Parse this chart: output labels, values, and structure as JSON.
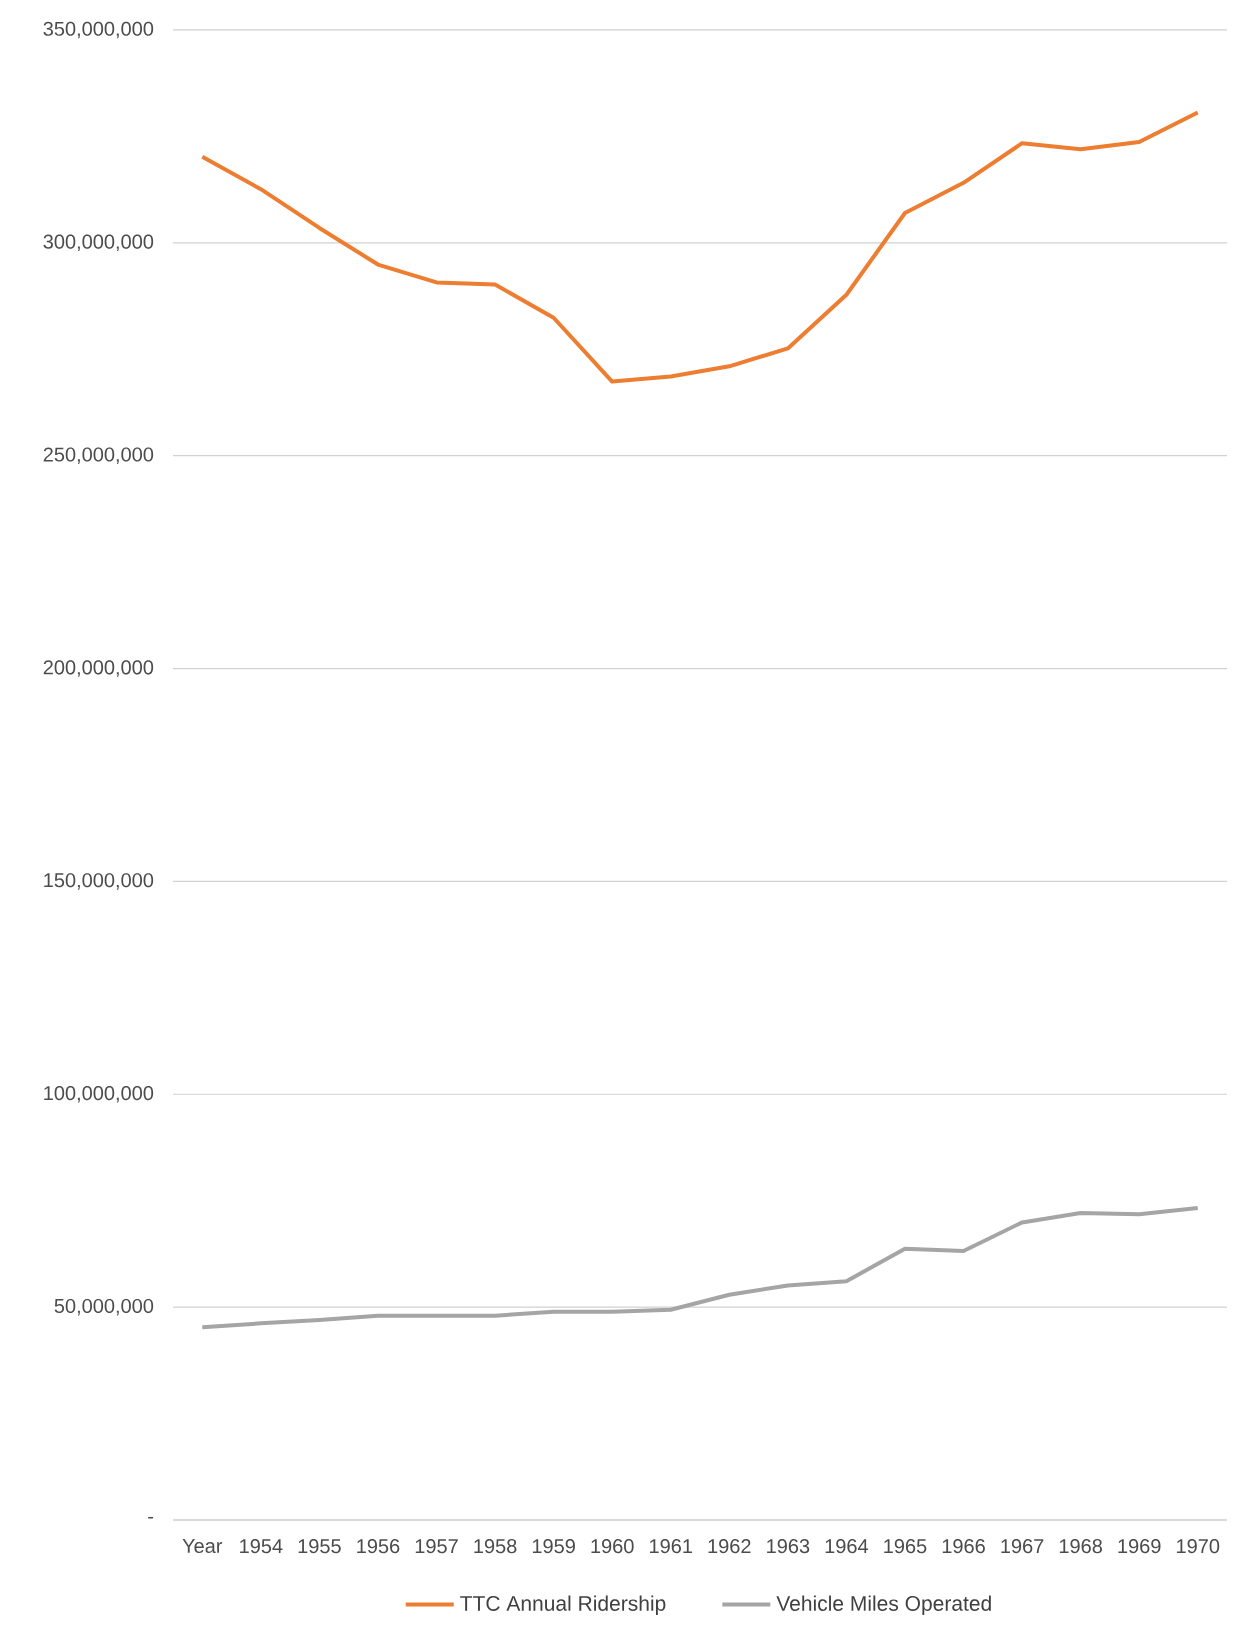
{
  "chart_data": {
    "type": "line",
    "categories": [
      "Year",
      "1954",
      "1955",
      "1956",
      "1957",
      "1958",
      "1959",
      "1960",
      "1961",
      "1962",
      "1963",
      "1964",
      "1965",
      "1966",
      "1967",
      "1968",
      "1969",
      "1970"
    ],
    "series": [
      {
        "name": "TTC Annual Ridership",
        "color": "#ed7d31",
        "values": [
          320200000,
          312600000,
          303500000,
          294900000,
          290700000,
          290200000,
          282400000,
          267400000,
          268600000,
          271000000,
          275200000,
          287800000,
          307000000,
          314100000,
          323400000,
          322000000,
          323700000,
          330600000
        ]
      },
      {
        "name": "Vehicle Miles Operated",
        "color": "#a5a5a5",
        "values": [
          45300000,
          46200000,
          47000000,
          48000000,
          48000000,
          48000000,
          48900000,
          48900000,
          49400000,
          52900000,
          55100000,
          56100000,
          63700000,
          63200000,
          69900000,
          72100000,
          71800000,
          73300000
        ]
      }
    ],
    "ylim": [
      0,
      350000000
    ],
    "yticks": [
      {
        "value": 0,
        "label": "-"
      },
      {
        "value": 50000000,
        "label": "50,000,000"
      },
      {
        "value": 100000000,
        "label": "100,000,000"
      },
      {
        "value": 150000000,
        "label": "150,000,000"
      },
      {
        "value": 200000000,
        "label": "200,000,000"
      },
      {
        "value": 250000000,
        "label": "250,000,000"
      },
      {
        "value": 300000000,
        "label": "300,000,000"
      },
      {
        "value": 350000000,
        "label": "350,000,000"
      }
    ],
    "grid": "y",
    "legend": "bottom",
    "marker": "none",
    "line_style": "solid"
  }
}
